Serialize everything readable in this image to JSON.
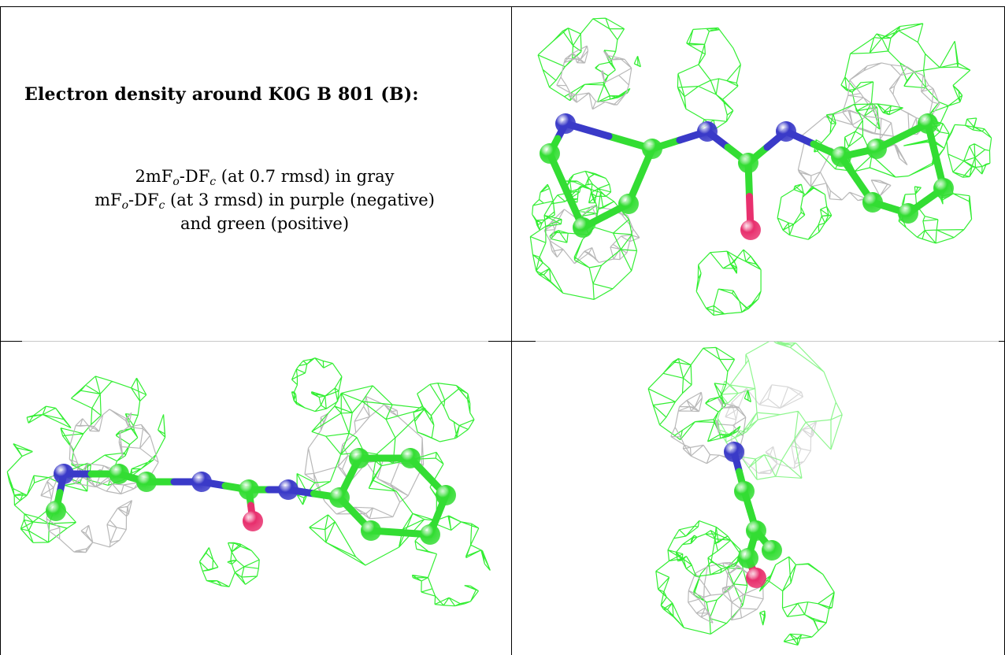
{
  "title": "Electron density around K0G B 801 (B):",
  "caption": {
    "line1_prefix": "2mF",
    "line1_sub1": "o",
    "line1_mid": "-DF",
    "line1_sub2": "c",
    "line1_suffix": " (at 0.7 rmsd) in gray",
    "line2_prefix": "mF",
    "line2_sub1": "o",
    "line2_mid": "-DF",
    "line2_sub2": "c",
    "line2_suffix": " (at 3 rmsd) in purple (negative)",
    "line3": "and green (positive)"
  },
  "colors": {
    "mesh_green": "#33ee33",
    "mesh_gray": "#b8b8b8",
    "carbon": "#33dd33",
    "nitrogen": "#3a3ac8",
    "oxygen": "#e8306e"
  },
  "views": [
    {
      "name": "top-right",
      "description_icon": "molecule-mesh-icon"
    },
    {
      "name": "bottom-left",
      "description_icon": "molecule-mesh-icon"
    },
    {
      "name": "bottom-right",
      "description_icon": "molecule-mesh-icon"
    }
  ]
}
